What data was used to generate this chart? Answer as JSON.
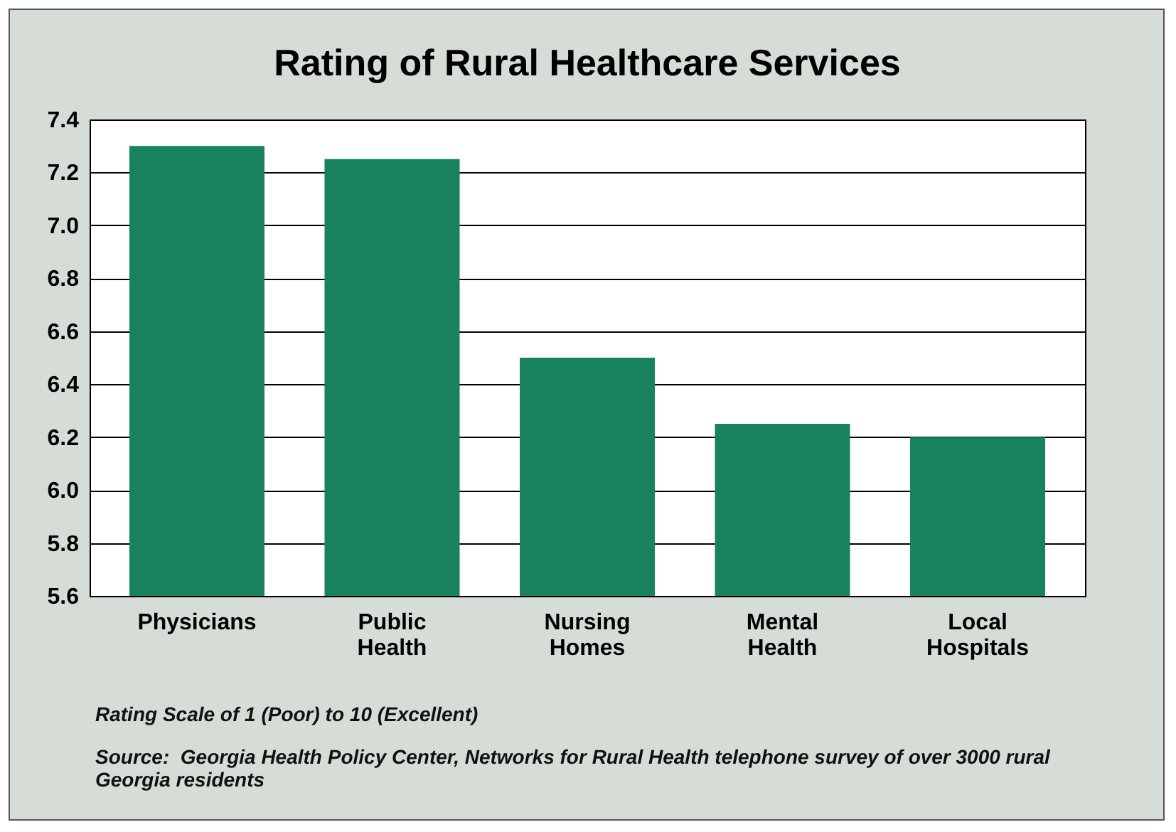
{
  "chart_data": {
    "type": "bar",
    "title": "Rating of Rural Healthcare Services",
    "categories": [
      "Physicians",
      "Public Health",
      "Nursing Homes",
      "Mental Health",
      "Local Hospitals"
    ],
    "values": [
      7.3,
      7.25,
      6.5,
      6.25,
      6.2
    ],
    "color": "#17825c",
    "ylim": [
      5.6,
      7.4
    ],
    "yticks": [
      5.6,
      5.8,
      {
        "value": 6,
        "label": "6.0"
      },
      6.2,
      6.4,
      6.6,
      6.8,
      {
        "value": 7,
        "label": "7.0"
      },
      7.2,
      7.4
    ],
    "grid": "y",
    "annotations": [
      "Rating Scale of 1 (Poor) to 10 (Excellent)",
      "Source:  Georgia Health Policy Center, Networks for Rural Health telephone survey of over 3000 rural Georgia residents"
    ]
  }
}
